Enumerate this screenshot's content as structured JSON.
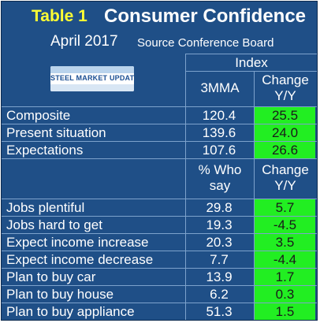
{
  "header": {
    "table_label": "Table 1",
    "title": "Consumer Confidence",
    "month": "April 2017",
    "source": "Source Conference Board"
  },
  "logo": {
    "text": "STEEL MARKET UPDATE"
  },
  "section1": {
    "group_header": "Index",
    "col1": "3MMA",
    "col2_line1": "Change",
    "col2_line2": "Y/Y",
    "rows": [
      {
        "label": "Composite",
        "value": "120.4",
        "change": "25.5"
      },
      {
        "label": "Present situation",
        "value": "139.6",
        "change": "24.0"
      },
      {
        "label": "Expectations",
        "value": "107.6",
        "change": "26.6"
      }
    ]
  },
  "section2": {
    "col1_line1": "% Who",
    "col1_line2": "say",
    "col2_line1": "Change",
    "col2_line2": "Y/Y",
    "rows": [
      {
        "label": "Jobs plentiful",
        "value": "29.8",
        "change": "5.7"
      },
      {
        "label": "Jobs hard to get",
        "value": "19.3",
        "change": "-4.5"
      },
      {
        "label": "Expect income increase",
        "value": "20.3",
        "change": "3.5"
      },
      {
        "label": "Expect income decrease",
        "value": "7.7",
        "change": "-4.4"
      },
      {
        "label": "Plan to buy car",
        "value": "13.9",
        "change": "1.7"
      },
      {
        "label": "Plan to buy house",
        "value": "6.2",
        "change": "0.3"
      },
      {
        "label": "Plan to buy appliance",
        "value": "51.3",
        "change": "1.5"
      }
    ]
  },
  "colors": {
    "background": "#1f4f87",
    "highlight": "#22ee22",
    "table_label": "#ffff33"
  }
}
